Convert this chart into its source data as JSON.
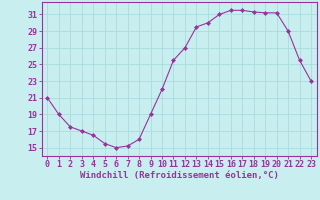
{
  "x": [
    0,
    1,
    2,
    3,
    4,
    5,
    6,
    7,
    8,
    9,
    10,
    11,
    12,
    13,
    14,
    15,
    16,
    17,
    18,
    19,
    20,
    21,
    22,
    23
  ],
  "y": [
    21,
    19,
    17.5,
    17,
    16.5,
    15.5,
    15,
    15.2,
    16,
    19,
    22,
    25.5,
    27,
    29.5,
    30,
    31,
    31.5,
    31.5,
    31.3,
    31.2,
    31.2,
    29,
    25.5,
    23
  ],
  "line_color": "#993399",
  "marker": "D",
  "marker_size": 2,
  "bg_color": "#c8eef0",
  "grid_color": "#aadddd",
  "xlabel": "Windchill (Refroidissement éolien,°C)",
  "xlabel_color": "#993399",
  "xlabel_fontsize": 6.5,
  "tick_color": "#993399",
  "tick_fontsize": 6,
  "yticks": [
    15,
    17,
    19,
    21,
    23,
    25,
    27,
    29,
    31
  ],
  "xticks": [
    0,
    1,
    2,
    3,
    4,
    5,
    6,
    7,
    8,
    9,
    10,
    11,
    12,
    13,
    14,
    15,
    16,
    17,
    18,
    19,
    20,
    21,
    22,
    23
  ],
  "ylim": [
    14.0,
    32.5
  ],
  "xlim": [
    -0.5,
    23.5
  ]
}
